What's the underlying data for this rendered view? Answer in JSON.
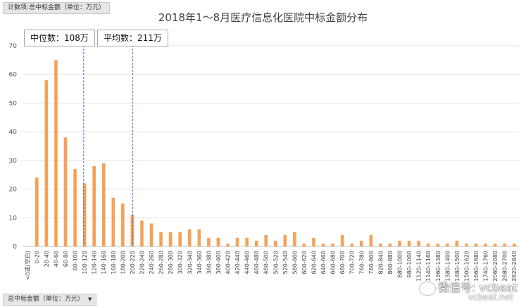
{
  "field_top": "计数项:总中标金额（单位：万元）",
  "field_bottom": "总中标金额（单位：万元）",
  "field_bottom_arrow": "▼",
  "median_label": "中位数：108万",
  "mean_label": "平均数：211万",
  "watermark": "微信号: vcbeat",
  "watermark_sub": "vcbeat.net",
  "colors": {
    "bar": "#F4A259",
    "grid": "#e3e3e3",
    "ref_line": "#4472C4"
  },
  "chart_data": {
    "type": "bar",
    "title": "2018年1～8月医疗信息化医院中标金额分布",
    "xlabel": "",
    "ylabel": "",
    "ylim": [
      0,
      70
    ],
    "yticks": [
      0,
      10,
      20,
      30,
      40,
      50,
      60,
      70
    ],
    "grid": true,
    "categories": [
      "<0或(空白)",
      "0-20",
      "20-40",
      "40-60",
      "60-80",
      "80-100",
      "100-120",
      "120-140",
      "140-160",
      "160-180",
      "180-200",
      "200-220",
      "220-240",
      "240-260",
      "260-280",
      "280-300",
      "300-320",
      "320-340",
      "340-360",
      "360-380",
      "380-400",
      "400-420",
      "420-440",
      "440-460",
      "460-480",
      "480-500",
      "500-520",
      "520-540",
      "580-600",
      "600-620",
      "620-640",
      "640-660",
      "660-680",
      "680-700",
      "700-720",
      "760-780",
      "780-800",
      "820-840",
      "860-880",
      "880-1000",
      "980-1000",
      "1120-1140",
      "1140-1160",
      "1360-1380",
      "1380-1400",
      "1480-1500",
      "1500-1620",
      "1660-1680",
      "1740-1760",
      "2060-2080",
      "2680-2700",
      "2820-2840"
    ],
    "values": [
      0,
      24,
      58,
      65,
      38,
      27,
      22,
      28,
      29,
      17,
      15,
      11,
      9,
      8,
      5,
      5,
      5,
      6,
      6,
      3,
      3,
      1,
      3,
      3,
      2,
      4,
      2,
      4,
      5,
      1,
      3,
      1,
      1,
      4,
      1,
      2,
      4,
      1,
      1,
      2,
      2,
      2,
      1,
      1,
      1,
      2,
      1,
      1,
      1,
      1,
      1,
      1
    ],
    "reference_lines": [
      {
        "label": "中位数：108万",
        "value": 108
      },
      {
        "label": "平均数：211万",
        "value": 211
      }
    ]
  }
}
